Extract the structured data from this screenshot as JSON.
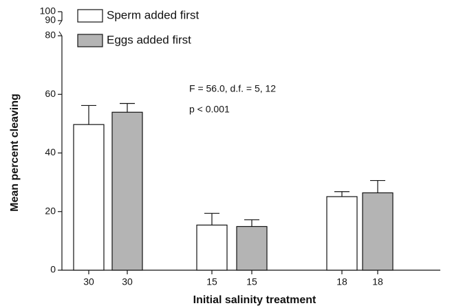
{
  "chart_data": {
    "type": "bar",
    "x_label": "Initial salinity treatment",
    "y_label": "Mean percent cleaving",
    "annotations": [
      "F = 56.0, d.f. = 5, 12",
      "p < 0.001"
    ],
    "categories": [
      "30",
      "30",
      "15",
      "15",
      "18",
      "18"
    ],
    "series": [
      {
        "name": "Sperm added first",
        "color": "#ffffff",
        "values": [
          49.7,
          null,
          15.4,
          null,
          25.1,
          null
        ],
        "errors": [
          6.5,
          null,
          4.0,
          null,
          1.7,
          null
        ]
      },
      {
        "name": "Eggs added first",
        "color": "#b4b4b4",
        "values": [
          null,
          53.9,
          null,
          14.9,
          null,
          26.4
        ],
        "errors": [
          null,
          3.0,
          null,
          2.3,
          null,
          4.2
        ]
      }
    ],
    "ylim": [
      0,
      80
    ],
    "yticks": [
      0,
      20,
      40,
      60,
      80
    ],
    "break_ticks": [
      90,
      100
    ],
    "grid": false
  }
}
